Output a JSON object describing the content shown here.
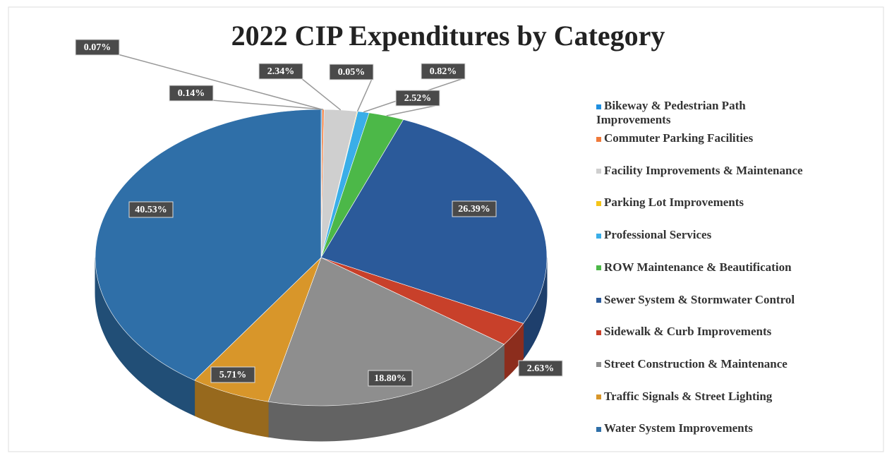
{
  "chart_data": {
    "type": "pie",
    "title": "2022 CIP Expenditures by Category",
    "categories": [
      "Bikeway & Pedestrian Path Improvements",
      "Commuter Parking Facilities",
      "Facility Improvements & Maintenance",
      "Parking Lot Improvements",
      "Professional Services",
      "ROW Maintenance & Beautification",
      "Sewer System & Stormwater Control",
      "Sidewalk & Curb Improvements",
      "Street Construction & Maintenance",
      "Traffic Signals & Street Lighting",
      "Water System Improvements"
    ],
    "values": [
      0.07,
      0.14,
      2.34,
      0.05,
      0.82,
      2.52,
      26.39,
      2.63,
      18.8,
      5.71,
      40.53
    ],
    "value_labels": [
      "0.07%",
      "0.14%",
      "2.34%",
      "0.05%",
      "0.82%",
      "2.52%",
      "26.39%",
      "2.63%",
      "18.80%",
      "5.71%",
      "40.53%"
    ],
    "colors": [
      "#1f8fe0",
      "#f07a3a",
      "#cfcfcf",
      "#f5c518",
      "#3aaee8",
      "#4cb848",
      "#2b5a9a",
      "#c8402a",
      "#8e8e8e",
      "#d8962a",
      "#2f6fa8"
    ],
    "legend": "right"
  }
}
